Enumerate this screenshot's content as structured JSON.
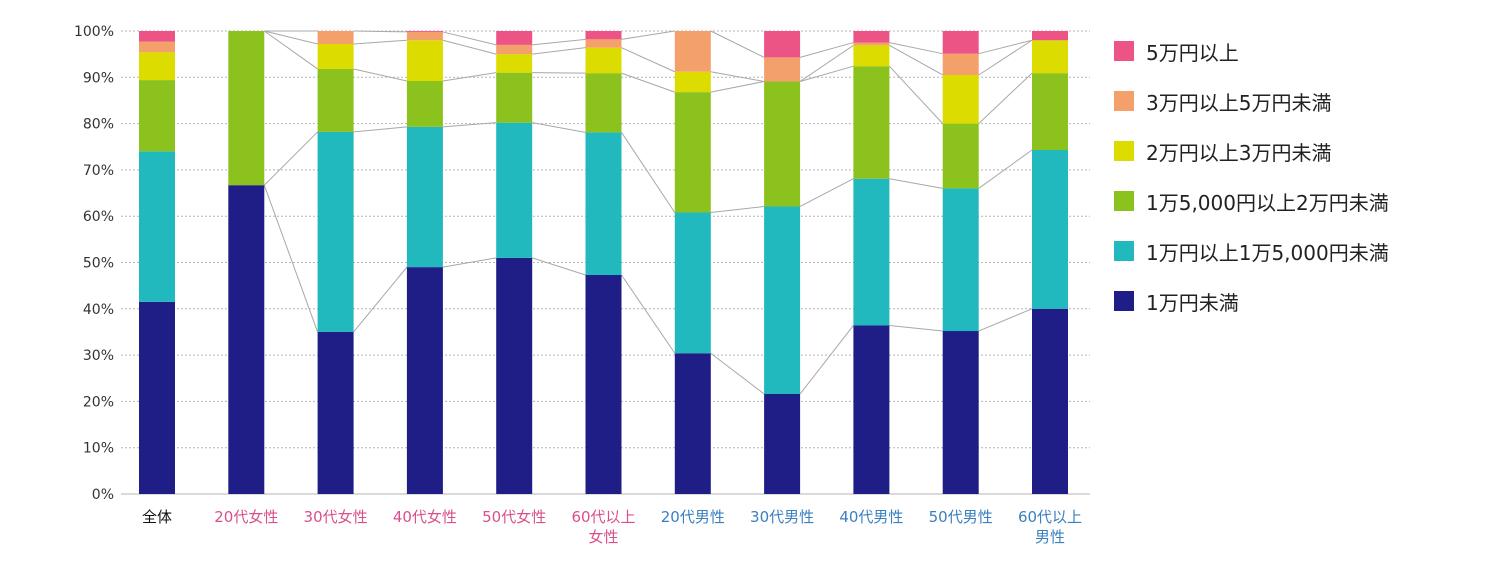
{
  "chart_data": {
    "type": "bar",
    "stacked": true,
    "percent": true,
    "title": "",
    "xlabel": "",
    "ylabel": "",
    "ylim": [
      0,
      100
    ],
    "yticks": [
      "0%",
      "10%",
      "20%",
      "30%",
      "40%",
      "50%",
      "60%",
      "70%",
      "80%",
      "90%",
      "100%"
    ],
    "grid": true,
    "legend_position": "right",
    "categories": [
      {
        "lines": [
          "全体"
        ],
        "color": "#111111"
      },
      {
        "lines": [
          "20代女性"
        ],
        "color": "#d94f8c"
      },
      {
        "lines": [
          "30代女性"
        ],
        "color": "#d94f8c"
      },
      {
        "lines": [
          "40代女性"
        ],
        "color": "#d94f8c"
      },
      {
        "lines": [
          "50代女性"
        ],
        "color": "#d94f8c"
      },
      {
        "lines": [
          "60代以上",
          "女性"
        ],
        "color": "#d94f8c"
      },
      {
        "lines": [
          "20代男性"
        ],
        "color": "#3a7fbf"
      },
      {
        "lines": [
          "30代男性"
        ],
        "color": "#3a7fbf"
      },
      {
        "lines": [
          "40代男性"
        ],
        "color": "#3a7fbf"
      },
      {
        "lines": [
          "50代男性"
        ],
        "color": "#3a7fbf"
      },
      {
        "lines": [
          "60代以上",
          "男性"
        ],
        "color": "#3a7fbf"
      }
    ],
    "series": [
      {
        "name": "1万円未満",
        "color": "#1e1e86",
        "values": [
          41.5,
          66.7,
          35.0,
          49.0,
          51.0,
          47.3,
          30.4,
          21.6,
          36.4,
          35.2,
          40.0
        ]
      },
      {
        "name": "1万円以上1万5,000円未満",
        "color": "#21b8be",
        "values": [
          32.5,
          0,
          43.2,
          30.3,
          29.2,
          30.8,
          30.4,
          40.5,
          31.7,
          30.8,
          34.3
        ]
      },
      {
        "name": "1万5,000円以上2万円未満",
        "color": "#8cc21e",
        "values": [
          15.4,
          33.3,
          13.6,
          9.9,
          10.8,
          12.8,
          26.0,
          27.0,
          24.3,
          14.0,
          16.6
        ]
      },
      {
        "name": "2万円以上3万円未満",
        "color": "#dcdc00",
        "values": [
          6.0,
          0,
          5.4,
          8.8,
          4.0,
          5.5,
          4.4,
          0,
          4.5,
          10.5,
          7.1
        ]
      },
      {
        "name": "3万円以上5万円未満",
        "color": "#f4a06a",
        "values": [
          2.3,
          0,
          2.8,
          1.8,
          2.0,
          1.8,
          8.8,
          5.2,
          0.6,
          4.6,
          0
        ]
      },
      {
        "name": "5万円以上",
        "color": "#ec5486",
        "values": [
          2.3,
          0,
          0,
          0.2,
          3.0,
          1.8,
          0,
          5.7,
          2.5,
          4.9,
          2.0
        ]
      }
    ]
  }
}
